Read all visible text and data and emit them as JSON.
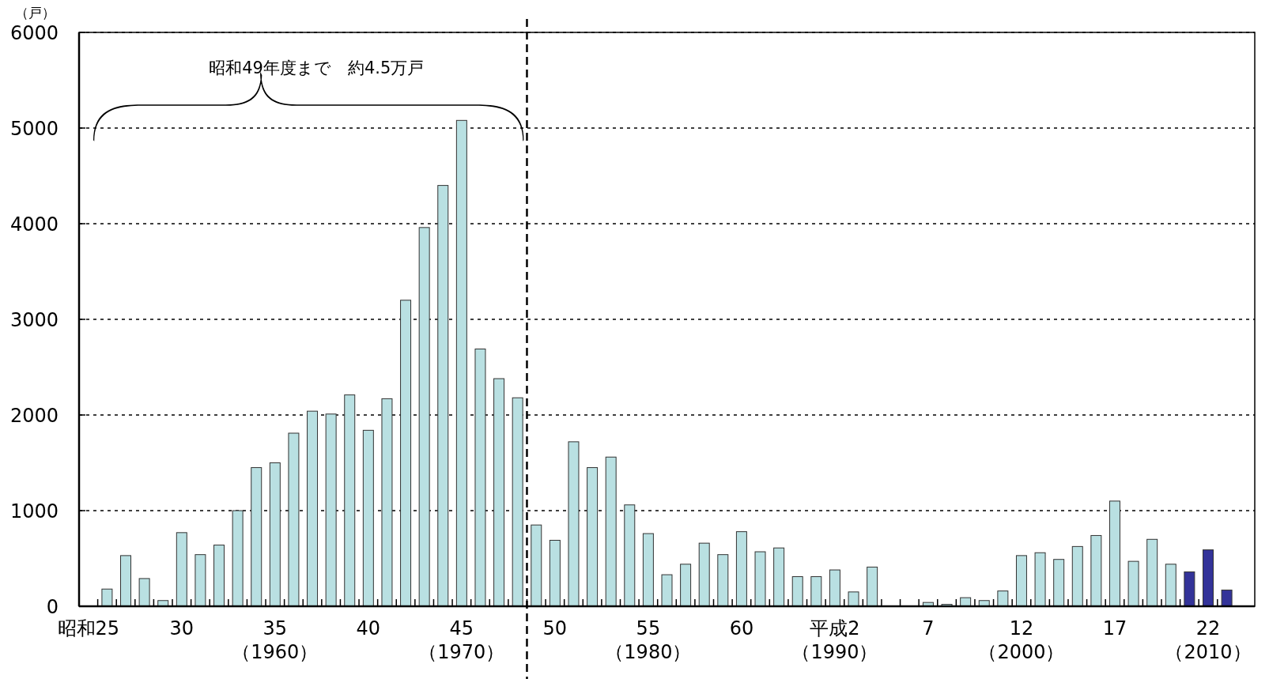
{
  "chart_data": {
    "type": "bar",
    "ylabel": "（戸）",
    "categories": [
      "昭和25",
      null,
      null,
      null,
      null,
      "30",
      null,
      null,
      null,
      null,
      "35\n（1960）",
      null,
      null,
      null,
      null,
      "40",
      null,
      null,
      null,
      null,
      "45\n（1970）",
      null,
      null,
      null,
      null,
      "50",
      null,
      null,
      null,
      null,
      "55\n（1980）",
      null,
      null,
      null,
      null,
      "60",
      null,
      null,
      null,
      null,
      "平成2\n（1990）",
      null,
      null,
      null,
      null,
      "7",
      null,
      null,
      null,
      null,
      "12\n（2000）",
      null,
      null,
      null,
      null,
      "17",
      null,
      null,
      null,
      null,
      "22\n（2010）",
      null
    ],
    "values": [
      0,
      180,
      530,
      290,
      60,
      770,
      540,
      640,
      1000,
      1450,
      1500,
      1810,
      2040,
      2010,
      2210,
      1840,
      2170,
      3200,
      3960,
      4400,
      5080,
      2690,
      2380,
      2180,
      850,
      690,
      1720,
      1450,
      1560,
      1060,
      760,
      330,
      440,
      660,
      540,
      780,
      570,
      610,
      310,
      310,
      380,
      150,
      410,
      0,
      0,
      40,
      20,
      90,
      60,
      160,
      530,
      560,
      490,
      625,
      740,
      1100,
      470,
      700,
      440,
      360,
      590,
      170
    ],
    "colors": [
      "#b9e0e2",
      "#b9e0e2",
      "#b9e0e2",
      "#b9e0e2",
      "#b9e0e2",
      "#b9e0e2",
      "#b9e0e2",
      "#b9e0e2",
      "#b9e0e2",
      "#b9e0e2",
      "#b9e0e2",
      "#b9e0e2",
      "#b9e0e2",
      "#b9e0e2",
      "#b9e0e2",
      "#b9e0e2",
      "#b9e0e2",
      "#b9e0e2",
      "#b9e0e2",
      "#b9e0e2",
      "#b9e0e2",
      "#b9e0e2",
      "#b9e0e2",
      "#b9e0e2",
      "#b9e0e2",
      "#b9e0e2",
      "#b9e0e2",
      "#b9e0e2",
      "#b9e0e2",
      "#b9e0e2",
      "#b9e0e2",
      "#b9e0e2",
      "#b9e0e2",
      "#b9e0e2",
      "#b9e0e2",
      "#b9e0e2",
      "#b9e0e2",
      "#b9e0e2",
      "#b9e0e2",
      "#b9e0e2",
      "#b9e0e2",
      "#b9e0e2",
      "#b9e0e2",
      "#b9e0e2",
      "#b9e0e2",
      "#b9e0e2",
      "#b9e0e2",
      "#b9e0e2",
      "#b9e0e2",
      "#b9e0e2",
      "#b9e0e2",
      "#b9e0e2",
      "#b9e0e2",
      "#b9e0e2",
      "#b9e0e2",
      "#b9e0e2",
      "#b9e0e2",
      "#b9e0e2",
      "#b9e0e2",
      "#333399",
      "#333399",
      "#333399"
    ],
    "ylim": [
      0,
      6000
    ],
    "yticks": [
      0,
      1000,
      2000,
      3000,
      4000,
      5000,
      6000
    ],
    "grid": "y",
    "annotations": [
      "昭和49年度まで　約4.5万戸"
    ]
  }
}
